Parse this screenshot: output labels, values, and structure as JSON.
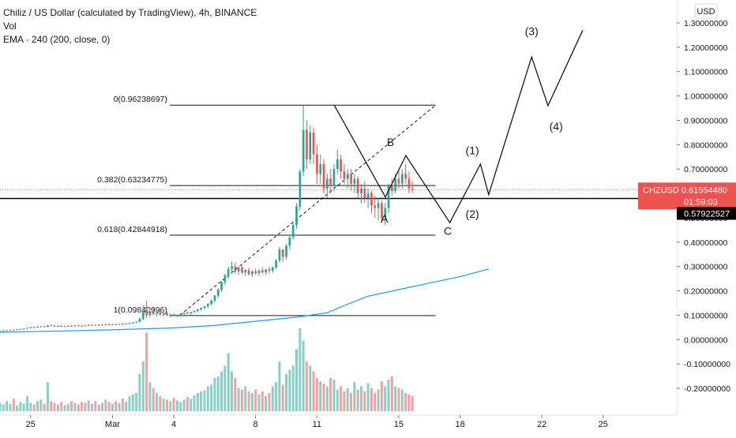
{
  "legend": {
    "title": "Chiliz / US Dollar (calculated by TradingView), 4h, BINANCE",
    "vol": "Vol",
    "ema": "EMA · 240 (200, close, 0)"
  },
  "currency": "USD",
  "colors": {
    "up": "#26a69a",
    "down": "#ef5350",
    "ema": "#2196f3",
    "vol_up": "#88cfc6",
    "vol_down": "#f4a0a0",
    "drawing": "#131722",
    "price_tag": "#ef5350",
    "support_tag": "#000000"
  },
  "chart_data": {
    "type": "candlestick",
    "y_axis": {
      "ticks": [
        "1.30000000",
        "1.20000000",
        "1.10000000",
        "1.00000000",
        "0.90000000",
        "0.80000000",
        "0.70000000",
        "0.60000000",
        "0.50000000",
        "0.40000000",
        "0.30000000",
        "0.20000000",
        "0.10000000",
        "0.00000000",
        "-0.10000000",
        "-0.20000000"
      ],
      "tick_values": [
        1.3,
        1.2,
        1.1,
        1.0,
        0.9,
        0.8,
        0.7,
        0.6,
        0.5,
        0.4,
        0.3,
        0.2,
        0.1,
        0.0,
        -0.1,
        -0.2
      ],
      "range": [
        -0.27,
        1.35
      ]
    },
    "x_axis": {
      "ticks": [
        "25",
        "Mar",
        "4",
        "8",
        "11",
        "15",
        "18",
        "22",
        "25"
      ],
      "tick_days": [
        -4,
        0,
        3,
        7,
        10,
        14,
        17,
        21,
        24
      ],
      "range_days": [
        -5.5,
        27.6
      ]
    },
    "price": {
      "symbol": "CHZUSD",
      "value": "0.61554480",
      "countdown": "01:59:03",
      "last": 0.6155
    },
    "support_line": {
      "label": "0.57922527",
      "value": 0.5792
    },
    "fib": [
      {
        "label": "0(0.96238697)",
        "value": 0.96238697
      },
      {
        "label": "0.382(0.63234775)",
        "value": 0.63234775
      },
      {
        "label": "0.618(0.42844918)",
        "value": 0.42844918
      },
      {
        "label": "1(0.09840996)",
        "value": 0.09840996
      }
    ],
    "fib_range_days": [
      2.8,
      15.8
    ],
    "trend_line": {
      "from": [
        3.3,
        0.1
      ],
      "to": [
        15.8,
        0.962
      ]
    },
    "wave_labels": [
      {
        "label": "B",
        "day": 13.6,
        "value": 0.795
      },
      {
        "label": "A",
        "day": 13.3,
        "value": 0.48
      },
      {
        "label": "C",
        "day": 16.4,
        "value": 0.43
      },
      {
        "label": "(1)",
        "day": 17.6,
        "value": 0.76
      },
      {
        "label": "(2)",
        "day": 17.6,
        "value": 0.5
      },
      {
        "label": "(3)",
        "day": 20.5,
        "value": 1.25
      },
      {
        "label": "(4)",
        "day": 21.7,
        "value": 0.86
      }
    ],
    "projection": [
      [
        10.85,
        0.962
      ],
      [
        13.35,
        0.585
      ],
      [
        14.35,
        0.755
      ],
      [
        16.5,
        0.48
      ],
      [
        18.0,
        0.72
      ],
      [
        18.4,
        0.595
      ],
      [
        20.5,
        1.16
      ],
      [
        21.3,
        0.96
      ],
      [
        23.0,
        1.27
      ]
    ],
    "ema": [
      [
        -5.5,
        0.03
      ],
      [
        -2,
        0.036
      ],
      [
        0,
        0.04
      ],
      [
        3,
        0.048
      ],
      [
        5,
        0.058
      ],
      [
        7,
        0.075
      ],
      [
        9,
        0.092
      ],
      [
        10.5,
        0.11
      ],
      [
        11.5,
        0.145
      ],
      [
        12.5,
        0.178
      ],
      [
        14,
        0.205
      ],
      [
        15.5,
        0.232
      ],
      [
        17,
        0.258
      ],
      [
        18.4,
        0.29
      ]
    ],
    "candles_days_start": -5.5,
    "candles_step": 0.1667,
    "candles": [
      [
        0.035,
        0.037,
        0.034,
        0.036
      ],
      [
        0.036,
        0.038,
        0.035,
        0.037
      ],
      [
        0.037,
        0.039,
        0.036,
        0.038
      ],
      [
        0.038,
        0.041,
        0.037,
        0.04
      ],
      [
        0.04,
        0.042,
        0.038,
        0.039
      ],
      [
        0.039,
        0.043,
        0.038,
        0.042
      ],
      [
        0.042,
        0.045,
        0.04,
        0.044
      ],
      [
        0.044,
        0.047,
        0.042,
        0.045
      ],
      [
        0.045,
        0.05,
        0.044,
        0.048
      ],
      [
        0.048,
        0.052,
        0.046,
        0.05
      ],
      [
        0.05,
        0.053,
        0.047,
        0.049
      ],
      [
        0.049,
        0.055,
        0.048,
        0.053
      ],
      [
        0.053,
        0.056,
        0.05,
        0.054
      ],
      [
        0.054,
        0.057,
        0.051,
        0.052
      ],
      [
        0.052,
        0.06,
        0.051,
        0.058
      ],
      [
        0.058,
        0.062,
        0.055,
        0.057
      ],
      [
        0.057,
        0.059,
        0.053,
        0.055
      ],
      [
        0.055,
        0.058,
        0.052,
        0.056
      ],
      [
        0.056,
        0.059,
        0.053,
        0.054
      ],
      [
        0.054,
        0.057,
        0.051,
        0.055
      ],
      [
        0.055,
        0.058,
        0.052,
        0.057
      ],
      [
        0.057,
        0.06,
        0.054,
        0.056
      ],
      [
        0.056,
        0.059,
        0.053,
        0.058
      ],
      [
        0.058,
        0.061,
        0.055,
        0.057
      ],
      [
        0.057,
        0.059,
        0.054,
        0.056
      ],
      [
        0.056,
        0.06,
        0.054,
        0.059
      ],
      [
        0.059,
        0.062,
        0.056,
        0.058
      ],
      [
        0.058,
        0.061,
        0.055,
        0.06
      ],
      [
        0.06,
        0.063,
        0.057,
        0.059
      ],
      [
        0.059,
        0.062,
        0.056,
        0.061
      ],
      [
        0.061,
        0.064,
        0.058,
        0.06
      ],
      [
        0.06,
        0.063,
        0.057,
        0.062
      ],
      [
        0.062,
        0.065,
        0.059,
        0.061
      ],
      [
        0.061,
        0.064,
        0.058,
        0.063
      ],
      [
        0.063,
        0.066,
        0.06,
        0.062
      ],
      [
        0.062,
        0.065,
        0.059,
        0.064
      ],
      [
        0.064,
        0.067,
        0.061,
        0.063
      ],
      [
        0.063,
        0.067,
        0.061,
        0.066
      ],
      [
        0.066,
        0.07,
        0.063,
        0.068
      ],
      [
        0.068,
        0.072,
        0.065,
        0.07
      ],
      [
        0.07,
        0.075,
        0.067,
        0.073
      ],
      [
        0.073,
        0.09,
        0.07,
        0.085
      ],
      [
        0.085,
        0.14,
        0.08,
        0.12
      ],
      [
        0.12,
        0.16,
        0.09,
        0.1
      ],
      [
        0.1,
        0.125,
        0.09,
        0.115
      ],
      [
        0.115,
        0.13,
        0.1,
        0.105
      ],
      [
        0.105,
        0.118,
        0.095,
        0.11
      ],
      [
        0.11,
        0.12,
        0.098,
        0.102
      ],
      [
        0.102,
        0.112,
        0.094,
        0.108
      ],
      [
        0.108,
        0.114,
        0.096,
        0.1
      ],
      [
        0.1,
        0.106,
        0.092,
        0.103
      ],
      [
        0.103,
        0.108,
        0.095,
        0.098
      ],
      [
        0.098,
        0.104,
        0.092,
        0.101
      ],
      [
        0.101,
        0.107,
        0.095,
        0.105
      ],
      [
        0.105,
        0.112,
        0.1,
        0.11
      ],
      [
        0.11,
        0.116,
        0.104,
        0.108
      ],
      [
        0.108,
        0.114,
        0.102,
        0.113
      ],
      [
        0.113,
        0.12,
        0.108,
        0.118
      ],
      [
        0.118,
        0.126,
        0.112,
        0.124
      ],
      [
        0.124,
        0.132,
        0.118,
        0.13
      ],
      [
        0.13,
        0.14,
        0.124,
        0.136
      ],
      [
        0.136,
        0.15,
        0.13,
        0.146
      ],
      [
        0.146,
        0.165,
        0.14,
        0.16
      ],
      [
        0.16,
        0.185,
        0.152,
        0.18
      ],
      [
        0.18,
        0.21,
        0.17,
        0.205
      ],
      [
        0.205,
        0.24,
        0.195,
        0.235
      ],
      [
        0.235,
        0.27,
        0.225,
        0.262
      ],
      [
        0.262,
        0.3,
        0.25,
        0.29
      ],
      [
        0.29,
        0.32,
        0.27,
        0.3
      ],
      [
        0.3,
        0.315,
        0.27,
        0.28
      ],
      [
        0.28,
        0.3,
        0.265,
        0.295
      ],
      [
        0.295,
        0.305,
        0.27,
        0.275
      ],
      [
        0.275,
        0.29,
        0.26,
        0.285
      ],
      [
        0.285,
        0.295,
        0.262,
        0.268
      ],
      [
        0.268,
        0.285,
        0.258,
        0.28
      ],
      [
        0.28,
        0.292,
        0.265,
        0.272
      ],
      [
        0.272,
        0.288,
        0.262,
        0.284
      ],
      [
        0.284,
        0.296,
        0.27,
        0.276
      ],
      [
        0.276,
        0.29,
        0.266,
        0.288
      ],
      [
        0.288,
        0.3,
        0.274,
        0.282
      ],
      [
        0.282,
        0.3,
        0.275,
        0.296
      ],
      [
        0.296,
        0.33,
        0.29,
        0.325
      ],
      [
        0.325,
        0.38,
        0.315,
        0.37
      ],
      [
        0.37,
        0.36,
        0.32,
        0.34
      ],
      [
        0.34,
        0.39,
        0.33,
        0.385
      ],
      [
        0.385,
        0.43,
        0.37,
        0.42
      ],
      [
        0.42,
        0.48,
        0.41,
        0.47
      ],
      [
        0.47,
        0.56,
        0.455,
        0.545
      ],
      [
        0.545,
        0.7,
        0.53,
        0.69
      ],
      [
        0.69,
        0.96,
        0.67,
        0.86
      ],
      [
        0.86,
        0.9,
        0.7,
        0.74
      ],
      [
        0.74,
        0.88,
        0.72,
        0.85
      ],
      [
        0.85,
        0.87,
        0.72,
        0.76
      ],
      [
        0.76,
        0.8,
        0.64,
        0.68
      ],
      [
        0.68,
        0.76,
        0.64,
        0.72
      ],
      [
        0.72,
        0.74,
        0.6,
        0.62
      ],
      [
        0.62,
        0.68,
        0.58,
        0.66
      ],
      [
        0.66,
        0.7,
        0.6,
        0.63
      ],
      [
        0.63,
        0.72,
        0.61,
        0.7
      ],
      [
        0.7,
        0.78,
        0.68,
        0.74
      ],
      [
        0.74,
        0.76,
        0.66,
        0.69
      ],
      [
        0.69,
        0.72,
        0.64,
        0.66
      ],
      [
        0.66,
        0.7,
        0.62,
        0.68
      ],
      [
        0.68,
        0.7,
        0.61,
        0.64
      ],
      [
        0.64,
        0.68,
        0.6,
        0.66
      ],
      [
        0.66,
        0.67,
        0.58,
        0.6
      ],
      [
        0.6,
        0.64,
        0.56,
        0.62
      ],
      [
        0.62,
        0.65,
        0.56,
        0.58
      ],
      [
        0.58,
        0.62,
        0.54,
        0.6
      ],
      [
        0.6,
        0.61,
        0.52,
        0.55
      ],
      [
        0.55,
        0.59,
        0.5,
        0.54
      ],
      [
        0.54,
        0.58,
        0.49,
        0.56
      ],
      [
        0.56,
        0.57,
        0.48,
        0.5
      ],
      [
        0.5,
        0.56,
        0.47,
        0.54
      ],
      [
        0.54,
        0.64,
        0.52,
        0.63
      ],
      [
        0.63,
        0.66,
        0.59,
        0.61
      ],
      [
        0.61,
        0.68,
        0.6,
        0.66
      ],
      [
        0.66,
        0.69,
        0.62,
        0.64
      ],
      [
        0.64,
        0.7,
        0.62,
        0.68
      ],
      [
        0.68,
        0.72,
        0.64,
        0.66
      ],
      [
        0.66,
        0.69,
        0.6,
        0.62
      ],
      [
        0.62,
        0.65,
        0.6,
        0.6155
      ]
    ],
    "volume_scale_max": 1.0,
    "volume": [
      0.1,
      0.08,
      0.12,
      0.09,
      0.15,
      0.07,
      0.11,
      0.09,
      0.18,
      0.1,
      0.08,
      0.12,
      0.14,
      0.09,
      0.35,
      0.12,
      0.1,
      0.08,
      0.11,
      0.07,
      0.09,
      0.12,
      0.1,
      0.08,
      0.11,
      0.1,
      0.13,
      0.09,
      0.12,
      0.08,
      0.1,
      0.14,
      0.11,
      0.09,
      0.12,
      0.1,
      0.15,
      0.11,
      0.18,
      0.2,
      0.22,
      0.45,
      0.6,
      0.95,
      0.35,
      0.28,
      0.22,
      0.18,
      0.15,
      0.14,
      0.12,
      0.16,
      0.13,
      0.11,
      0.14,
      0.17,
      0.15,
      0.19,
      0.22,
      0.24,
      0.25,
      0.3,
      0.32,
      0.4,
      0.42,
      0.48,
      0.55,
      0.7,
      0.48,
      0.4,
      0.28,
      0.26,
      0.3,
      0.24,
      0.22,
      0.26,
      0.2,
      0.24,
      0.18,
      0.22,
      0.3,
      0.35,
      0.6,
      0.32,
      0.45,
      0.5,
      0.55,
      0.75,
      1.0,
      0.85,
      0.6,
      0.55,
      0.48,
      0.4,
      0.36,
      0.33,
      0.3,
      0.4,
      0.38,
      0.26,
      0.3,
      0.24,
      0.28,
      0.22,
      0.35,
      0.26,
      0.3,
      0.24,
      0.34,
      0.28,
      0.22,
      0.26,
      0.36,
      0.3,
      0.38,
      0.42,
      0.3,
      0.28,
      0.26,
      0.22,
      0.2,
      0.18
    ]
  }
}
